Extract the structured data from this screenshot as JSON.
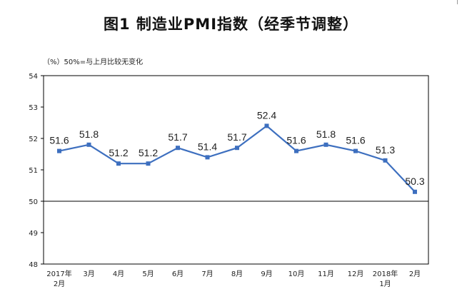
{
  "chart_data": {
    "type": "line",
    "title": "图1  制造业PMI指数（经季节调整）",
    "subtitle": "（%）50%=与上月比较无变化",
    "categories": [
      [
        "2017年",
        "2月"
      ],
      [
        "3月"
      ],
      [
        "4月"
      ],
      [
        "5月"
      ],
      [
        "6月"
      ],
      [
        "7月"
      ],
      [
        "8月"
      ],
      [
        "9月"
      ],
      [
        "10月"
      ],
      [
        "11月"
      ],
      [
        "12月"
      ],
      [
        "2018年",
        "1月"
      ],
      [
        "2月"
      ]
    ],
    "series": [
      {
        "values": [
          51.6,
          51.8,
          51.2,
          51.2,
          51.7,
          51.4,
          51.7,
          52.4,
          51.6,
          51.8,
          51.6,
          51.3,
          50.3
        ]
      }
    ],
    "data_labels": [
      "51.6",
      "51.8",
      "51.2",
      "51.2",
      "51.7",
      "51.4",
      "51.7",
      "52.4",
      "51.6",
      "51.8",
      "51.6",
      "51.3",
      "50.3"
    ],
    "ylim": [
      48,
      54
    ],
    "yticks": [
      48,
      49,
      50,
      51,
      52,
      53,
      54
    ],
    "reference_line": 50,
    "grid": false,
    "colors": {
      "line": "#3d6fbf",
      "marker": "#3d6fbf",
      "axis": "#000000",
      "frame": "#000000"
    }
  }
}
